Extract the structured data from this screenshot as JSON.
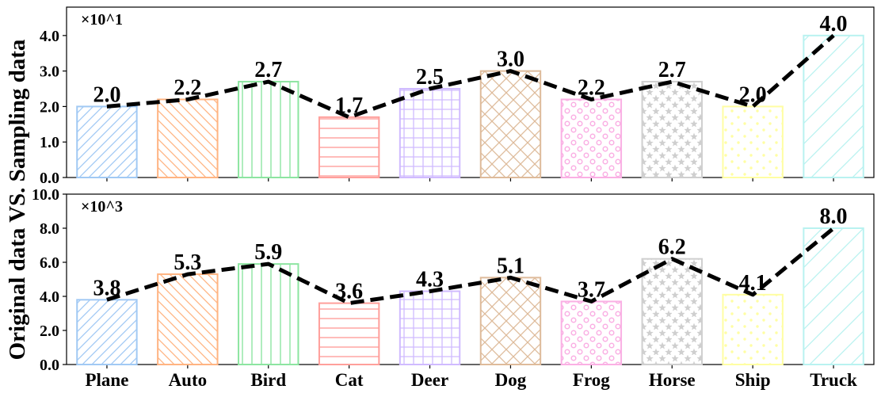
{
  "chart_data": {
    "type": "bar",
    "ylabel": "Original data  VS. Sampling data",
    "categories": [
      "Plane",
      "Auto",
      "Bird",
      "Cat",
      "Deer",
      "Dog",
      "Frog",
      "Horse",
      "Ship",
      "Truck"
    ],
    "colors": [
      "#a1c9f4",
      "#ffb482",
      "#8de5a1",
      "#ff9f9b",
      "#d0bbff",
      "#debb9b",
      "#fab0e4",
      "#cfcfcf",
      "#fffea3",
      "#b9f2f0"
    ],
    "hatches": [
      "diag-right",
      "diag-left",
      "vertical",
      "horizontal",
      "grid",
      "crosshatch",
      "circles",
      "stars",
      "dots",
      "diag-right-sparse"
    ],
    "line_style": "dashed-black",
    "panels": [
      {
        "id": "sampling",
        "multiplier": "×10^1",
        "values": [
          2.0,
          2.2,
          2.7,
          1.7,
          2.5,
          3.0,
          2.2,
          2.7,
          2.0,
          4.0
        ],
        "labels": [
          "2.0",
          "2.2",
          "2.7",
          "1.7",
          "2.5",
          "3.0",
          "2.2",
          "2.7",
          "2.0",
          "4.0"
        ],
        "ylim": [
          0,
          4.8
        ],
        "yticks": [
          0,
          1,
          2,
          3,
          4
        ],
        "ytick_labels": [
          "0.0",
          "1.0",
          "2.0",
          "3.0",
          "4.0"
        ]
      },
      {
        "id": "original",
        "multiplier": "×10^3",
        "values": [
          3.8,
          5.3,
          5.9,
          3.6,
          4.3,
          5.1,
          3.7,
          6.2,
          4.1,
          8.0
        ],
        "labels": [
          "3.8",
          "5.3",
          "5.9",
          "3.6",
          "4.3",
          "5.1",
          "3.7",
          "6.2",
          "4.1",
          "8.0"
        ],
        "ylim": [
          0,
          10
        ],
        "yticks": [
          0,
          2,
          4,
          6,
          8,
          10
        ],
        "ytick_labels": [
          "0.0",
          "2.0",
          "4.0",
          "6.0",
          "8.0",
          "10.0"
        ]
      }
    ]
  }
}
